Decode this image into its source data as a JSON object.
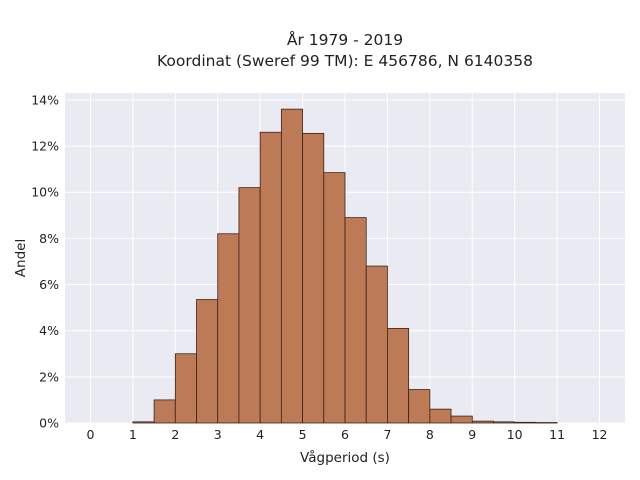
{
  "chart_data": {
    "type": "bar",
    "title_lines": [
      "År 1979 - 2019",
      "Koordinat (Sweref 99 TM): E 456786, N 6140358"
    ],
    "xlabel": "Vågperiod (s)",
    "ylabel": "Andel",
    "xlim": [
      -0.6,
      12.6
    ],
    "ylim": [
      0,
      14.3
    ],
    "x_ticks": [
      0,
      1,
      2,
      3,
      4,
      5,
      6,
      7,
      8,
      9,
      10,
      11,
      12
    ],
    "y_ticks": [
      0,
      2,
      4,
      6,
      8,
      10,
      12,
      14
    ],
    "y_tick_labels": [
      "0%",
      "2%",
      "4%",
      "6%",
      "8%",
      "10%",
      "12%",
      "14%"
    ],
    "bin_width": 0.5,
    "bin_starts": [
      1.0,
      1.5,
      2.0,
      2.5,
      3.0,
      3.5,
      4.0,
      4.5,
      5.0,
      5.5,
      6.0,
      6.5,
      7.0,
      7.5,
      8.0,
      8.5,
      9.0,
      9.5,
      10.0,
      10.5
    ],
    "values": [
      0.05,
      1.0,
      3.0,
      5.35,
      8.2,
      10.2,
      12.6,
      13.6,
      12.55,
      10.85,
      8.9,
      6.8,
      4.1,
      1.45,
      0.6,
      0.3,
      0.08,
      0.05,
      0.03,
      0.02
    ],
    "grid": true,
    "legend": "none",
    "colors": {
      "bar_fill": "#bd7a56",
      "bar_edge": "#3d2316",
      "plot_background": "#eaeaf2",
      "grid": "#ffffff"
    }
  }
}
